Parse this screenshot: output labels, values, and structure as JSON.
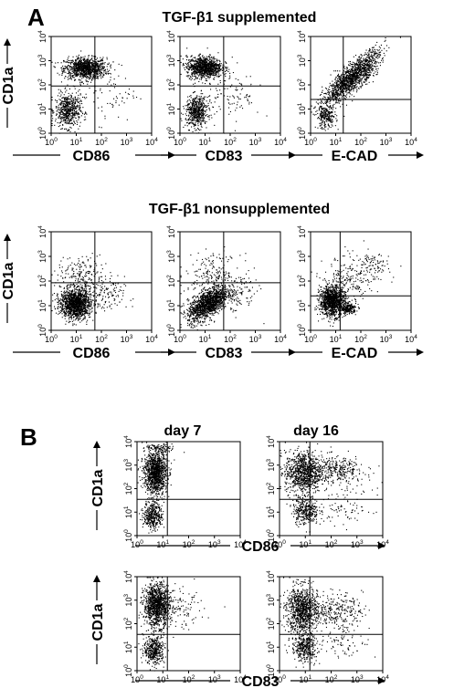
{
  "panel_labels": [
    "A",
    "B"
  ],
  "titles": {
    "supplemented": "TGF-β1 supplemented",
    "nonsupplemented": "TGF-β1 nonsupplemented",
    "day7": "day 7",
    "day16": "day 16"
  },
  "axis_labels": {
    "y": "CD1a",
    "cd86": "CD86",
    "cd83": "CD83",
    "ecad": "E-CAD"
  },
  "chart_data": [
    {
      "type": "scatter",
      "id": "A-sup-CD86",
      "xlabel": "CD86",
      "ylabel": "CD1a",
      "scale": "log",
      "xlim": [
        1,
        10000
      ],
      "ylim": [
        1,
        10000
      ],
      "gates": {
        "x": 55,
        "y": 90
      },
      "clusters": [
        {
          "cx": 1.35,
          "cy": 2.7,
          "sx": 0.42,
          "sy": 0.22,
          "frac": 0.62
        },
        {
          "cx": 0.65,
          "cy": 0.95,
          "sx": 0.25,
          "sy": 0.35,
          "frac": 0.33
        },
        {
          "cx": 2.2,
          "cy": 1.7,
          "sx": 0.6,
          "sy": 0.6,
          "frac": 0.05
        }
      ]
    },
    {
      "type": "scatter",
      "id": "A-sup-CD83",
      "xlabel": "CD83",
      "ylabel": "CD1a",
      "scale": "log",
      "xlim": [
        1,
        10000
      ],
      "ylim": [
        1,
        10000
      ],
      "gates": {
        "x": 55,
        "y": 90
      },
      "clusters": [
        {
          "cx": 0.95,
          "cy": 2.75,
          "sx": 0.35,
          "sy": 0.22,
          "frac": 0.6
        },
        {
          "cx": 0.65,
          "cy": 0.9,
          "sx": 0.22,
          "sy": 0.32,
          "frac": 0.33
        },
        {
          "cx": 2.0,
          "cy": 1.6,
          "sx": 0.6,
          "sy": 0.6,
          "frac": 0.07
        }
      ]
    },
    {
      "type": "scatter",
      "id": "A-sup-ECAD",
      "xlabel": "E-CAD",
      "ylabel": "CD1a",
      "scale": "log",
      "xlim": [
        1,
        10000
      ],
      "ylim": [
        1,
        10000
      ],
      "gates": {
        "x": 20,
        "y": 25
      },
      "clusters": [
        {
          "cx": 1.6,
          "cy": 2.3,
          "sx": 0.55,
          "sy": 0.55,
          "corr": 0.85,
          "frac": 0.8
        },
        {
          "cx": 0.6,
          "cy": 0.7,
          "sx": 0.2,
          "sy": 0.25,
          "frac": 0.15
        },
        {
          "cx": 2.2,
          "cy": 2.6,
          "sx": 0.2,
          "sy": 0.25,
          "frac": 0.05
        }
      ]
    },
    {
      "type": "scatter",
      "id": "A-non-CD86",
      "xlabel": "CD86",
      "ylabel": "CD1a",
      "scale": "log",
      "xlim": [
        1,
        10000
      ],
      "ylim": [
        1,
        10000
      ],
      "gates": {
        "x": 55,
        "y": 85
      },
      "clusters": [
        {
          "cx": 0.95,
          "cy": 1.1,
          "sx": 0.3,
          "sy": 0.3,
          "frac": 0.8
        },
        {
          "cx": 1.2,
          "cy": 2.2,
          "sx": 0.5,
          "sy": 0.4,
          "frac": 0.12
        },
        {
          "cx": 2.1,
          "cy": 1.4,
          "sx": 0.4,
          "sy": 0.4,
          "frac": 0.08
        }
      ]
    },
    {
      "type": "scatter",
      "id": "A-non-CD83",
      "xlabel": "CD83",
      "ylabel": "CD1a",
      "scale": "log",
      "xlim": [
        1,
        10000
      ],
      "ylim": [
        1,
        10000
      ],
      "gates": {
        "x": 55,
        "y": 85
      },
      "clusters": [
        {
          "cx": 1.1,
          "cy": 1.1,
          "sx": 0.4,
          "sy": 0.35,
          "corr": 0.6,
          "frac": 0.82
        },
        {
          "cx": 1.3,
          "cy": 2.3,
          "sx": 0.55,
          "sy": 0.4,
          "frac": 0.12
        },
        {
          "cx": 2.3,
          "cy": 1.5,
          "sx": 0.4,
          "sy": 0.4,
          "frac": 0.06
        }
      ]
    },
    {
      "type": "scatter",
      "id": "A-non-ECAD",
      "xlabel": "E-CAD",
      "ylabel": "CD1a",
      "scale": "log",
      "xlim": [
        1,
        10000
      ],
      "ylim": [
        1,
        10000
      ],
      "gates": {
        "x": 15,
        "y": 25
      },
      "clusters": [
        {
          "cx": 0.85,
          "cy": 1.2,
          "sx": 0.25,
          "sy": 0.3,
          "frac": 0.7
        },
        {
          "cx": 1.5,
          "cy": 0.9,
          "sx": 0.15,
          "sy": 0.1,
          "frac": 0.12
        },
        {
          "cx": 1.5,
          "cy": 2.0,
          "sx": 0.5,
          "sy": 0.5,
          "frac": 0.13
        },
        {
          "cx": 2.5,
          "cy": 2.6,
          "sx": 0.3,
          "sy": 0.3,
          "frac": 0.05
        }
      ]
    },
    {
      "type": "scatter",
      "id": "B-d7-CD86",
      "xlabel": "CD86",
      "ylabel": "CD1a",
      "scale": "log",
      "xlim": [
        1,
        10000
      ],
      "ylim": [
        1,
        10000
      ],
      "gates": {
        "x": 15,
        "y": 35
      },
      "clusters": [
        {
          "cx": 0.7,
          "cy": 2.7,
          "sx": 0.22,
          "sy": 0.45,
          "frac": 0.72
        },
        {
          "cx": 0.6,
          "cy": 0.9,
          "sx": 0.18,
          "sy": 0.3,
          "frac": 0.23
        },
        {
          "cx": 0.9,
          "cy": 3.7,
          "sx": 0.3,
          "sy": 0.1,
          "frac": 0.05
        }
      ]
    },
    {
      "type": "scatter",
      "id": "B-d16-CD86",
      "xlabel": "CD86",
      "ylabel": "CD1a",
      "scale": "log",
      "xlim": [
        1,
        10000
      ],
      "ylim": [
        1,
        10000
      ],
      "gates": {
        "x": 15,
        "y": 35
      },
      "clusters": [
        {
          "cx": 0.9,
          "cy": 2.7,
          "sx": 0.35,
          "sy": 0.45,
          "frac": 0.55
        },
        {
          "cx": 1.0,
          "cy": 1.1,
          "sx": 0.25,
          "sy": 0.3,
          "frac": 0.2
        },
        {
          "cx": 2.2,
          "cy": 2.8,
          "sx": 0.55,
          "sy": 0.3,
          "frac": 0.2
        },
        {
          "cx": 2.6,
          "cy": 1.2,
          "sx": 0.5,
          "sy": 0.4,
          "frac": 0.05
        }
      ]
    },
    {
      "type": "scatter",
      "id": "B-d7-CD83",
      "xlabel": "CD83",
      "ylabel": "CD1a",
      "scale": "log",
      "xlim": [
        1,
        10000
      ],
      "ylim": [
        1,
        10000
      ],
      "gates": {
        "x": 15,
        "y": 35
      },
      "clusters": [
        {
          "cx": 0.75,
          "cy": 2.8,
          "sx": 0.25,
          "sy": 0.45,
          "frac": 0.68
        },
        {
          "cx": 0.65,
          "cy": 0.9,
          "sx": 0.2,
          "sy": 0.3,
          "frac": 0.25
        },
        {
          "cx": 1.6,
          "cy": 2.6,
          "sx": 0.5,
          "sy": 0.4,
          "frac": 0.07
        }
      ]
    },
    {
      "type": "scatter",
      "id": "B-d16-CD83",
      "xlabel": "CD83",
      "ylabel": "CD1a",
      "scale": "log",
      "xlim": [
        1,
        10000
      ],
      "ylim": [
        1,
        10000
      ],
      "gates": {
        "x": 15,
        "y": 35
      },
      "clusters": [
        {
          "cx": 0.85,
          "cy": 2.6,
          "sx": 0.3,
          "sy": 0.5,
          "frac": 0.55
        },
        {
          "cx": 0.95,
          "cy": 1.0,
          "sx": 0.25,
          "sy": 0.3,
          "frac": 0.22
        },
        {
          "cx": 2.1,
          "cy": 2.6,
          "sx": 0.55,
          "sy": 0.35,
          "frac": 0.18
        },
        {
          "cx": 2.5,
          "cy": 1.3,
          "sx": 0.5,
          "sy": 0.4,
          "frac": 0.05
        }
      ]
    }
  ]
}
